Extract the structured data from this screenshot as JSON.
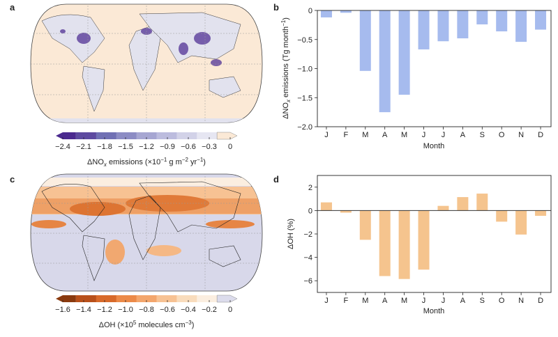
{
  "panels": {
    "a": "a",
    "b": "b",
    "c": "c",
    "d": "d"
  },
  "colorbar_a": {
    "ticks": [
      "−2.4",
      "−2.1",
      "−1.8",
      "−1.5",
      "−1.2",
      "−0.9",
      "−0.6",
      "−0.3",
      "0"
    ],
    "colors": [
      "#4b2a8f",
      "#5d4aa0",
      "#7070b4",
      "#8c8cc4",
      "#a6a6d2",
      "#bcbcde",
      "#d2d2e8",
      "#e6e6f2",
      "#fbe9d6"
    ],
    "label_pre": "ΔNO",
    "label_sub": "x",
    "label_post": " emissions (×10",
    "label_exp1": "−1",
    "label_mid": " g m",
    "label_exp2": "−2",
    "label_mid2": " yr",
    "label_exp3": "−1",
    "label_end": ")"
  },
  "colorbar_c": {
    "ticks": [
      "−1.6",
      "−1.4",
      "−1.2",
      "−1.0",
      "−0.8",
      "−0.6",
      "−0.4",
      "−0.2",
      "0"
    ],
    "colors": [
      "#8a3a0e",
      "#b8501a",
      "#d86a2a",
      "#ec8a48",
      "#f3a66c",
      "#f7c293",
      "#f9dcbc",
      "#fbeee0",
      "#dcdcec"
    ],
    "label_pre": "ΔOH (×10",
    "label_exp": "5",
    "label_post": " molecules cm",
    "label_exp2": "−3",
    "label_end": ")"
  },
  "chart_data": [
    {
      "type": "bar",
      "title": "",
      "categories": [
        "J",
        "F",
        "M",
        "A",
        "M",
        "J",
        "J",
        "A",
        "S",
        "O",
        "N",
        "D"
      ],
      "values": [
        -0.12,
        -0.04,
        -1.04,
        -1.75,
        -1.45,
        -0.67,
        -0.53,
        -0.48,
        -0.24,
        -0.36,
        -0.54,
        -0.33
      ],
      "xlabel": "Month",
      "ylabel_pre": "ΔNO",
      "ylabel_sub": "x",
      "ylabel_post": " emissions (Tg month",
      "ylabel_exp": "−1",
      "ylabel_end": ")",
      "ylim": [
        -2.0,
        0
      ],
      "yticks": [
        0,
        -0.5,
        -1.0,
        -1.5,
        -2.0
      ],
      "ytick_labels": [
        "0",
        "−0.5",
        "−1.0",
        "−1.5",
        "−2.0"
      ],
      "color": "#a6bbee"
    },
    {
      "type": "bar",
      "title": "",
      "categories": [
        "J",
        "F",
        "M",
        "A",
        "M",
        "J",
        "J",
        "A",
        "S",
        "O",
        "N",
        "D"
      ],
      "values": [
        0.7,
        -0.18,
        -2.5,
        -5.6,
        -5.85,
        -5.05,
        0.4,
        1.15,
        1.45,
        -0.95,
        -2.05,
        -0.45
      ],
      "xlabel": "Month",
      "ylabel": "ΔOH (%)",
      "ylim": [
        -7,
        3
      ],
      "yticks": [
        2,
        0,
        -2,
        -4,
        -6
      ],
      "ytick_labels": [
        "2",
        "0",
        "−2",
        "−4",
        "−6"
      ],
      "color": "#f5c48e"
    }
  ]
}
